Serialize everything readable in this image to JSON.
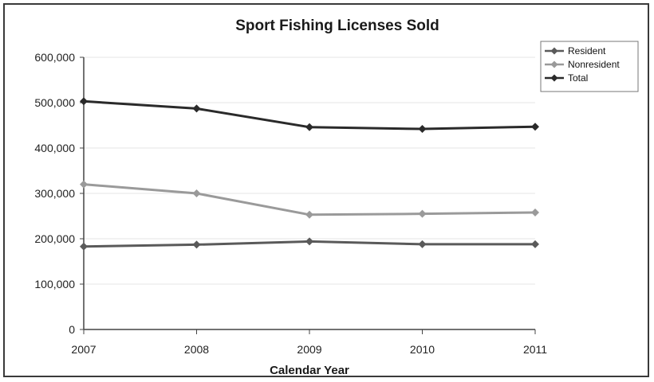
{
  "chart_data": {
    "type": "line",
    "title": "Sport Fishing Licenses Sold",
    "xlabel": "Calendar Year",
    "ylabel": "",
    "x": [
      "2007",
      "2008",
      "2009",
      "2010",
      "2011"
    ],
    "ylim": [
      0,
      600000
    ],
    "yticks": [
      0,
      100000,
      200000,
      300000,
      400000,
      500000,
      600000
    ],
    "ytick_labels": [
      "0",
      "100,000",
      "200,000",
      "300,000",
      "400,000",
      "500,000",
      "600,000"
    ],
    "grid": true,
    "legend_position": "top-right",
    "series": [
      {
        "name": "Resident",
        "color": "#5a5a5a",
        "values": [
          183000,
          187000,
          194000,
          188000,
          188000
        ]
      },
      {
        "name": "Nonresident",
        "color": "#9a9a9a",
        "values": [
          320000,
          300000,
          253000,
          255000,
          258000
        ]
      },
      {
        "name": "Total",
        "color": "#2a2a2a",
        "values": [
          503000,
          487000,
          446000,
          442000,
          447000
        ]
      }
    ]
  }
}
